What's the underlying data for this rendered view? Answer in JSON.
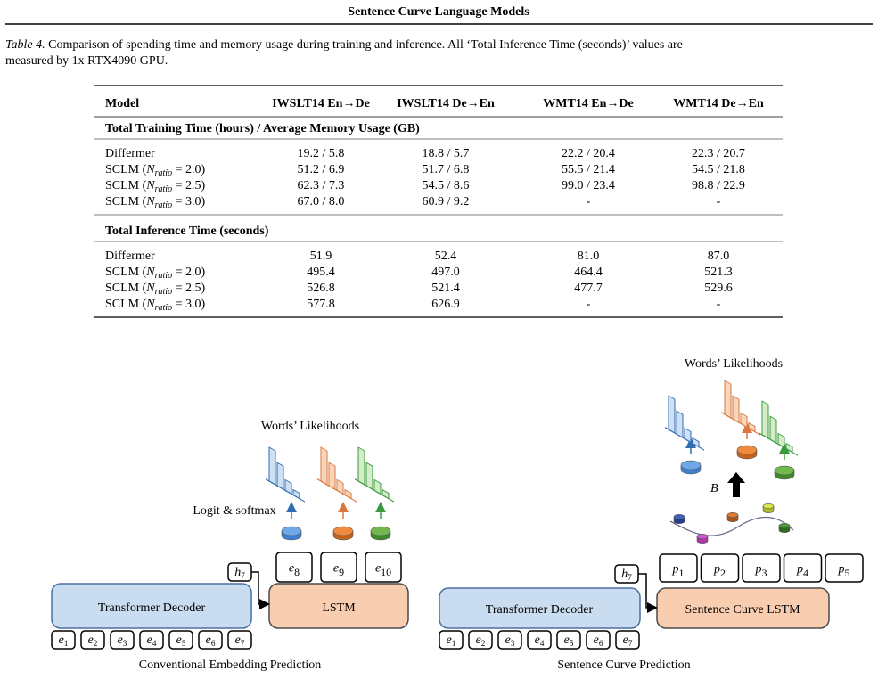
{
  "header": {
    "title": "Sentence Curve Language Models"
  },
  "caption": {
    "label": "Table 4.",
    "lines": [
      "Comparison of spending time and memory usage during training and inference. All ‘Total Inference Time (seconds)’ values are",
      "measured by 1x RTX4090 GPU."
    ]
  },
  "table": {
    "columns": [
      "Model",
      "IWSLT14 En→De",
      "IWSLT14 De→En",
      "WMT14 En→De",
      "WMT14 De→En"
    ],
    "sections": [
      {
        "title": "Total Training Time (hours) / Average Memory Usage (GB)",
        "rows": [
          {
            "label": [
              "Differmer"
            ],
            "cells": [
              "19.2 / 5.8",
              "18.8 / 5.7",
              "22.2 / 20.4",
              "22.3 / 20.7"
            ]
          },
          {
            "label": [
              "SCLM (",
              "N",
              "ratio",
              " = 2.0)"
            ],
            "cells": [
              "51.2 / 6.9",
              "51.7 / 6.8",
              "55.5 / 21.4",
              "54.5 / 21.8"
            ]
          },
          {
            "label": [
              "SCLM (",
              "N",
              "ratio",
              " = 2.5)"
            ],
            "cells": [
              "62.3 / 7.3",
              "54.5 / 8.6",
              "99.0 / 23.4",
              "98.8 / 22.9"
            ]
          },
          {
            "label": [
              "SCLM (",
              "N",
              "ratio",
              " = 3.0)"
            ],
            "cells": [
              "67.0 / 8.0",
              "60.9 / 9.2",
              "-",
              "-"
            ]
          }
        ]
      },
      {
        "title": "Total Inference Time (seconds)",
        "rows": [
          {
            "label": [
              "Differmer"
            ],
            "cells": [
              "51.9",
              "52.4",
              "81.0",
              "87.0"
            ]
          },
          {
            "label": [
              "SCLM (",
              "N",
              "ratio",
              " = 2.0)"
            ],
            "cells": [
              "495.4",
              "497.0",
              "464.4",
              "521.3"
            ]
          },
          {
            "label": [
              "SCLM (",
              "N",
              "ratio",
              " = 2.5)"
            ],
            "cells": [
              "526.8",
              "521.4",
              "477.7",
              "529.6"
            ]
          },
          {
            "label": [
              "SCLM (",
              "N",
              "ratio",
              " = 3.0)"
            ],
            "cells": [
              "577.8",
              "626.9",
              "-",
              "-"
            ]
          }
        ]
      }
    ]
  },
  "figure": {
    "left": {
      "likelihoods_title": "Words’ Likelihoods",
      "logit_label": "Logit & softmax",
      "decoder": "Transformer Decoder",
      "lstm": "LSTM",
      "hidden": {
        "base": "h",
        "sub": "7"
      },
      "inputs": [
        {
          "base": "e",
          "sub": "1"
        },
        {
          "base": "e",
          "sub": "2"
        },
        {
          "base": "e",
          "sub": "3"
        },
        {
          "base": "e",
          "sub": "4"
        },
        {
          "base": "e",
          "sub": "5"
        },
        {
          "base": "e",
          "sub": "6"
        },
        {
          "base": "e",
          "sub": "7"
        }
      ],
      "outputs": [
        {
          "base": "e",
          "sub": "8"
        },
        {
          "base": "e",
          "sub": "9"
        },
        {
          "base": "e",
          "sub": "10"
        }
      ],
      "caption": "Conventional Embedding Prediction"
    },
    "right": {
      "likelihoods_title": "Words’ Likelihoods",
      "curve_label": "B",
      "decoder": "Transformer Decoder",
      "lstm": "Sentence Curve LSTM",
      "hidden": {
        "base": "h",
        "sub": "7"
      },
      "inputs": [
        {
          "base": "e",
          "sub": "1"
        },
        {
          "base": "e",
          "sub": "2"
        },
        {
          "base": "e",
          "sub": "3"
        },
        {
          "base": "e",
          "sub": "4"
        },
        {
          "base": "e",
          "sub": "5"
        },
        {
          "base": "e",
          "sub": "6"
        },
        {
          "base": "e",
          "sub": "7"
        }
      ],
      "outputs": [
        {
          "base": "p",
          "sub": "1"
        },
        {
          "base": "p",
          "sub": "2"
        },
        {
          "base": "p",
          "sub": "3"
        },
        {
          "base": "p",
          "sub": "4"
        },
        {
          "base": "p",
          "sub": "5"
        }
      ],
      "caption": "Sentence Curve Prediction"
    }
  }
}
